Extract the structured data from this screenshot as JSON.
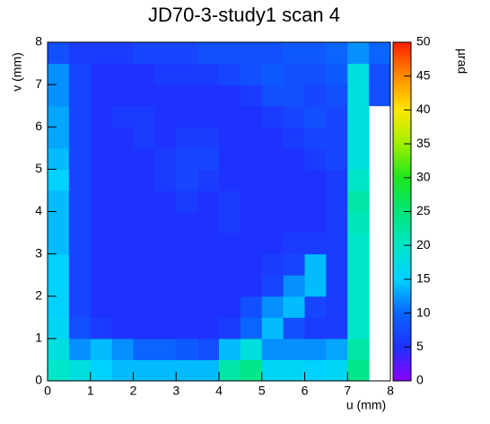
{
  "chart_data": {
    "type": "heatmap",
    "title": "JD70-3-study1 scan 4",
    "x_label": "u (mm)",
    "y_label": "v (mm)",
    "z_label": "µrad",
    "x_bins": [
      0,
      0.5,
      1,
      1.5,
      2,
      2.5,
      3,
      3.5,
      4,
      4.5,
      5,
      5.5,
      6,
      6.5,
      7,
      7.5,
      8
    ],
    "y_bins": [
      0,
      0.5,
      1,
      1.5,
      2,
      2.5,
      3,
      3.5,
      4,
      4.5,
      5,
      5.5,
      6,
      6.5,
      7,
      7.5,
      8
    ],
    "values": [
      [
        20,
        18,
        15,
        14,
        14,
        14,
        14,
        14,
        22,
        24,
        16,
        16,
        15,
        16,
        24,
        null
      ],
      [
        18,
        12,
        14,
        12,
        10,
        10,
        9,
        8,
        14,
        18,
        12,
        12,
        12,
        13,
        22,
        null
      ],
      [
        16,
        8,
        6,
        5,
        5,
        5,
        5,
        5,
        6,
        10,
        14,
        8,
        6,
        6,
        20,
        null
      ],
      [
        15,
        7,
        5,
        5,
        5,
        5,
        5,
        5,
        5,
        8,
        12,
        14,
        7,
        6,
        20,
        null
      ],
      [
        15,
        7,
        5,
        5,
        5,
        5,
        5,
        5,
        5,
        5,
        7,
        12,
        14,
        6,
        20,
        null
      ],
      [
        15,
        7,
        5,
        5,
        5,
        5,
        5,
        5,
        5,
        5,
        6,
        7,
        14,
        6,
        20,
        null
      ],
      [
        14,
        7,
        5,
        5,
        5,
        5,
        5,
        5,
        5,
        5,
        5,
        6,
        6,
        6,
        20,
        null
      ],
      [
        14,
        7,
        5,
        5,
        5,
        5,
        5,
        5,
        6,
        5,
        5,
        5,
        5,
        6,
        21,
        null
      ],
      [
        14,
        7,
        5,
        5,
        5,
        5,
        6,
        5,
        6,
        5,
        5,
        5,
        5,
        6,
        22,
        null
      ],
      [
        15,
        7,
        5,
        5,
        5,
        6,
        7,
        6,
        5,
        5,
        5,
        5,
        5,
        6,
        20,
        null
      ],
      [
        14,
        7,
        5,
        5,
        5,
        6,
        7,
        7,
        5,
        5,
        5,
        5,
        6,
        7,
        18,
        null
      ],
      [
        13,
        7,
        5,
        5,
        6,
        5,
        6,
        6,
        5,
        5,
        5,
        6,
        7,
        7,
        18,
        null
      ],
      [
        13,
        7,
        5,
        6,
        6,
        5,
        5,
        5,
        5,
        5,
        6,
        7,
        8,
        7,
        18,
        null
      ],
      [
        12,
        7,
        5,
        5,
        5,
        5,
        5,
        5,
        5,
        6,
        8,
        8,
        7,
        8,
        18,
        8
      ],
      [
        12,
        7,
        5,
        5,
        5,
        6,
        6,
        6,
        7,
        8,
        9,
        8,
        8,
        9,
        18,
        8
      ],
      [
        8,
        6,
        6,
        6,
        7,
        7,
        7,
        8,
        8,
        8,
        8,
        9,
        9,
        10,
        12,
        10
      ]
    ],
    "xlim": [
      0,
      8
    ],
    "ylim": [
      0,
      8
    ],
    "zlim": [
      0,
      50
    ],
    "xticks": [
      0,
      1,
      2,
      3,
      4,
      5,
      6,
      7,
      8
    ],
    "yticks": [
      0,
      1,
      2,
      3,
      4,
      5,
      6,
      7,
      8
    ],
    "zticks": [
      0,
      5,
      10,
      15,
      20,
      25,
      30,
      35,
      40,
      45,
      50
    ],
    "colorscale": [
      [
        0,
        "#8a00ff"
      ],
      [
        5,
        "#1e32ff"
      ],
      [
        10,
        "#0a64ff"
      ],
      [
        15,
        "#00d2ff"
      ],
      [
        20,
        "#00e6c8"
      ],
      [
        25,
        "#00e678"
      ],
      [
        30,
        "#1ee61e"
      ],
      [
        35,
        "#a0f000"
      ],
      [
        40,
        "#ffe600"
      ],
      [
        45,
        "#ff8c00"
      ],
      [
        50,
        "#ff1e00"
      ]
    ]
  }
}
